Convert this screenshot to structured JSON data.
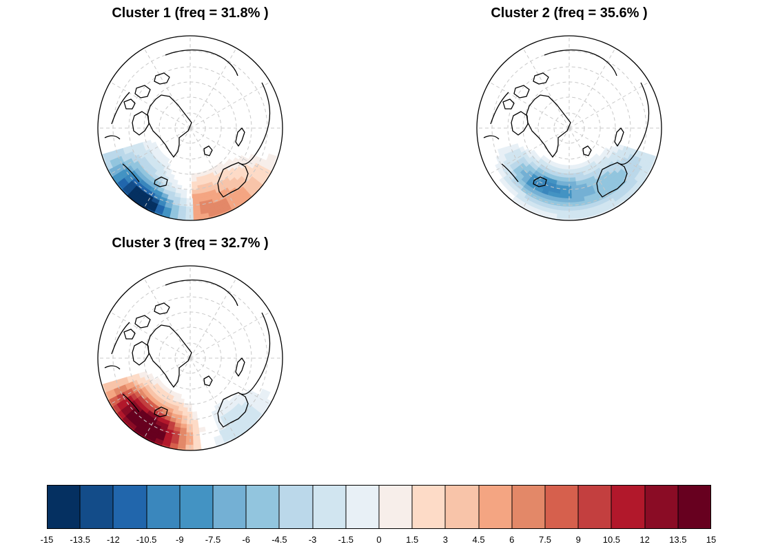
{
  "panels": [
    {
      "title": "Cluster 1 (freq = 31.8% )",
      "pattern": "dipole"
    },
    {
      "title": "Cluster 2 (freq = 35.6% )",
      "pattern": "band-negative"
    },
    {
      "title": "Cluster 3 (freq = 32.7% )",
      "pattern": "strong-positive"
    }
  ],
  "colorbar": {
    "ticks": [
      "-15",
      "-13.5",
      "-12",
      "-10.5",
      "-9",
      "-7.5",
      "-6",
      "-4.5",
      "-3",
      "-1.5",
      "0",
      "1.5",
      "3",
      "4.5",
      "6",
      "7.5",
      "9",
      "10.5",
      "12",
      "13.5",
      "15"
    ],
    "colors": [
      "#053061",
      "#134c89",
      "#2166ac",
      "#3a87bd",
      "#4393c3",
      "#74b0d4",
      "#92c5de",
      "#bbd8ea",
      "#d1e5f0",
      "#e8f0f6",
      "#f7eeea",
      "#fddbc7",
      "#f8c4a9",
      "#f4a582",
      "#e38868",
      "#d6604d",
      "#c33f3f",
      "#b2182b",
      "#8a0c25",
      "#67001f"
    ]
  },
  "map_style": {
    "land_outline": "#000000",
    "grid": "#c8c8c8",
    "background": "#ffffff"
  }
}
